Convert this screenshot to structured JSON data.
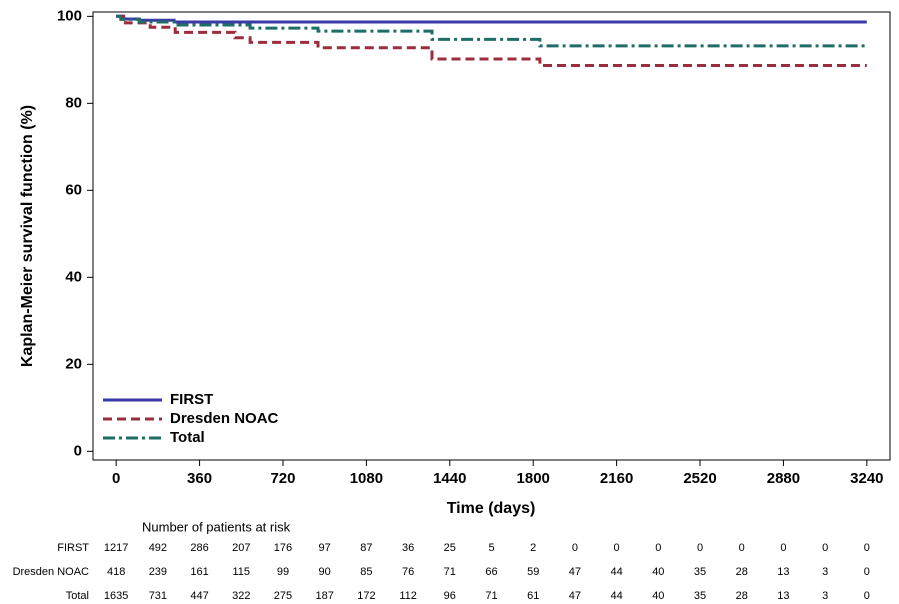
{
  "chart_data": {
    "type": "line",
    "step": true,
    "x_label": "Time (days)",
    "y_label": "Kaplan-Meier survival function (%)",
    "xlim": [
      -100,
      3340
    ],
    "ylim": [
      -2,
      101
    ],
    "xticks": [
      0,
      360,
      720,
      1080,
      1440,
      1800,
      2160,
      2520,
      2880,
      3240
    ],
    "yticks": [
      0,
      20,
      40,
      60,
      80,
      100
    ],
    "legend": "lower left",
    "series": [
      {
        "name": "FIRST",
        "color": "#3a3aa6",
        "dash": "solid",
        "x": [
          0,
          30,
          30,
          100,
          100,
          250,
          250,
          3240
        ],
        "values": [
          100,
          100,
          99.4,
          99.4,
          99.1,
          99.1,
          98.7,
          98.7
        ]
      },
      {
        "name": "Dresden NOAC",
        "color": "#9b2d3f",
        "dash": "dash",
        "x": [
          0,
          40,
          40,
          147,
          147,
          255,
          255,
          513,
          513,
          578,
          578,
          871,
          871,
          1363,
          1363,
          1829,
          1829,
          3240
        ],
        "values": [
          100,
          100,
          98.5,
          98.5,
          97.5,
          97.5,
          96.3,
          96.3,
          95.1,
          95.1,
          94,
          94,
          92.8,
          92.8,
          90.2,
          90.2,
          88.7,
          88.7
        ]
      },
      {
        "name": "Total",
        "color": "#1f6e66",
        "dash": "dashdot",
        "x": [
          0,
          20,
          20,
          100,
          100,
          250,
          250,
          578,
          578,
          871,
          871,
          1363,
          1363,
          1829,
          1829,
          3240
        ],
        "values": [
          100,
          100,
          99.3,
          99.3,
          98.7,
          98.7,
          98,
          98,
          97.3,
          97.3,
          96.6,
          96.6,
          94.7,
          94.7,
          93.2,
          93.2
        ]
      }
    ],
    "risk_table": {
      "title": "Number of patients at risk",
      "rows": [
        {
          "name": "FIRST",
          "values": [
            1217,
            492,
            286,
            207,
            176,
            97,
            87,
            36,
            25,
            5,
            2,
            0,
            0,
            0,
            0,
            0,
            0,
            0,
            0
          ]
        },
        {
          "name": "Dresden NOAC",
          "values": [
            418,
            239,
            161,
            115,
            99,
            90,
            85,
            76,
            71,
            66,
            59,
            47,
            44,
            40,
            35,
            28,
            13,
            3,
            0
          ]
        },
        {
          "name": "Total",
          "values": [
            1635,
            731,
            447,
            322,
            275,
            187,
            172,
            112,
            96,
            71,
            61,
            47,
            44,
            40,
            35,
            28,
            13,
            3,
            0
          ]
        }
      ]
    }
  }
}
